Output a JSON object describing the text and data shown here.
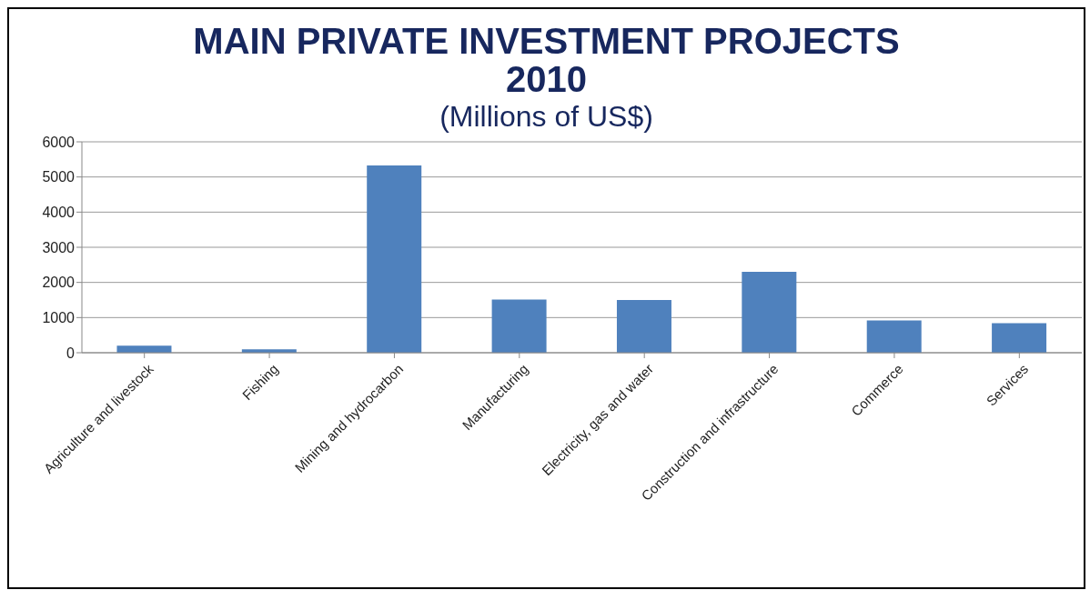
{
  "chart_data": {
    "type": "bar",
    "title": "MAIN PRIVATE INVESTMENT PROJECTS\n2010",
    "subtitle": "(Millions of US$)",
    "categories": [
      "Agriculture and livestock",
      "Fishing",
      "Mining and hydrocarbon",
      "Manufacturing",
      "Electricity, gas and water",
      "Construction and infrastructure",
      "Commerce",
      "Services"
    ],
    "values": [
      200,
      100,
      5330,
      1510,
      1500,
      2300,
      920,
      840
    ],
    "color": "#4f81bd",
    "ylim": [
      0,
      6000
    ],
    "yticks": [
      0,
      1000,
      2000,
      3000,
      4000,
      5000,
      6000
    ],
    "grid": "y"
  }
}
